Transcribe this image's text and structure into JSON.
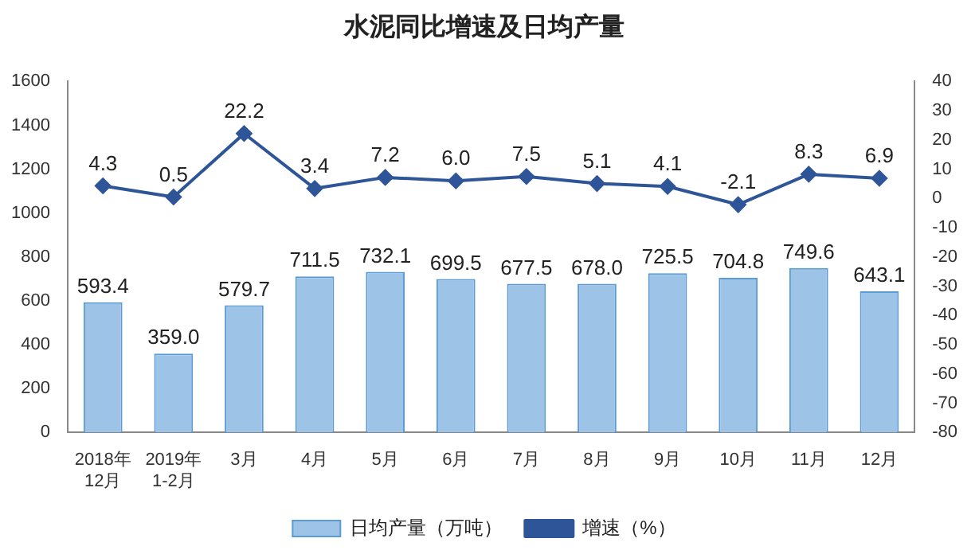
{
  "chart_data": {
    "type": "bar",
    "title": "水泥同比增速及日均产量",
    "categories": [
      "2018年\n12月",
      "2019年\n1-2月",
      "3月",
      "4月",
      "5月",
      "6月",
      "7月",
      "8月",
      "9月",
      "10月",
      "11月",
      "12月"
    ],
    "series": [
      {
        "name": "日均产量（万吨）",
        "color": "#9dc3e6",
        "values": [
          593.4,
          359.0,
          579.7,
          711.5,
          732.1,
          699.5,
          677.5,
          678.0,
          725.5,
          704.8,
          749.6,
          643.1
        ],
        "value_labels": [
          "593.4",
          "359.0",
          "579.7",
          "711.5",
          "732.1",
          "699.5",
          "677.5",
          "678.0",
          "725.5",
          "704.8",
          "749.6",
          "643.1"
        ]
      },
      {
        "name": "增速（%）",
        "type": "line",
        "axis": "y2",
        "color": "#2e5597",
        "marker": "diamond",
        "values": [
          4.3,
          0.5,
          22.2,
          3.4,
          7.2,
          6.0,
          7.5,
          5.1,
          4.1,
          -2.1,
          8.3,
          6.9
        ],
        "value_labels": [
          "4.3",
          "0.5",
          "22.2",
          "3.4",
          "7.2",
          "6.0",
          "7.5",
          "5.1",
          "4.1",
          "-2.1",
          "8.3",
          "6.9"
        ]
      }
    ],
    "ylim": [
      0,
      1600
    ],
    "yticks": [
      0,
      200,
      400,
      600,
      800,
      1000,
      1200,
      1400,
      1600
    ],
    "y2lim": [
      -80,
      40
    ],
    "y2ticks": [
      -80,
      -70,
      -60,
      -50,
      -40,
      -30,
      -20,
      -10,
      0,
      10,
      20,
      30,
      40
    ],
    "legend": "bottom",
    "grid": false
  }
}
